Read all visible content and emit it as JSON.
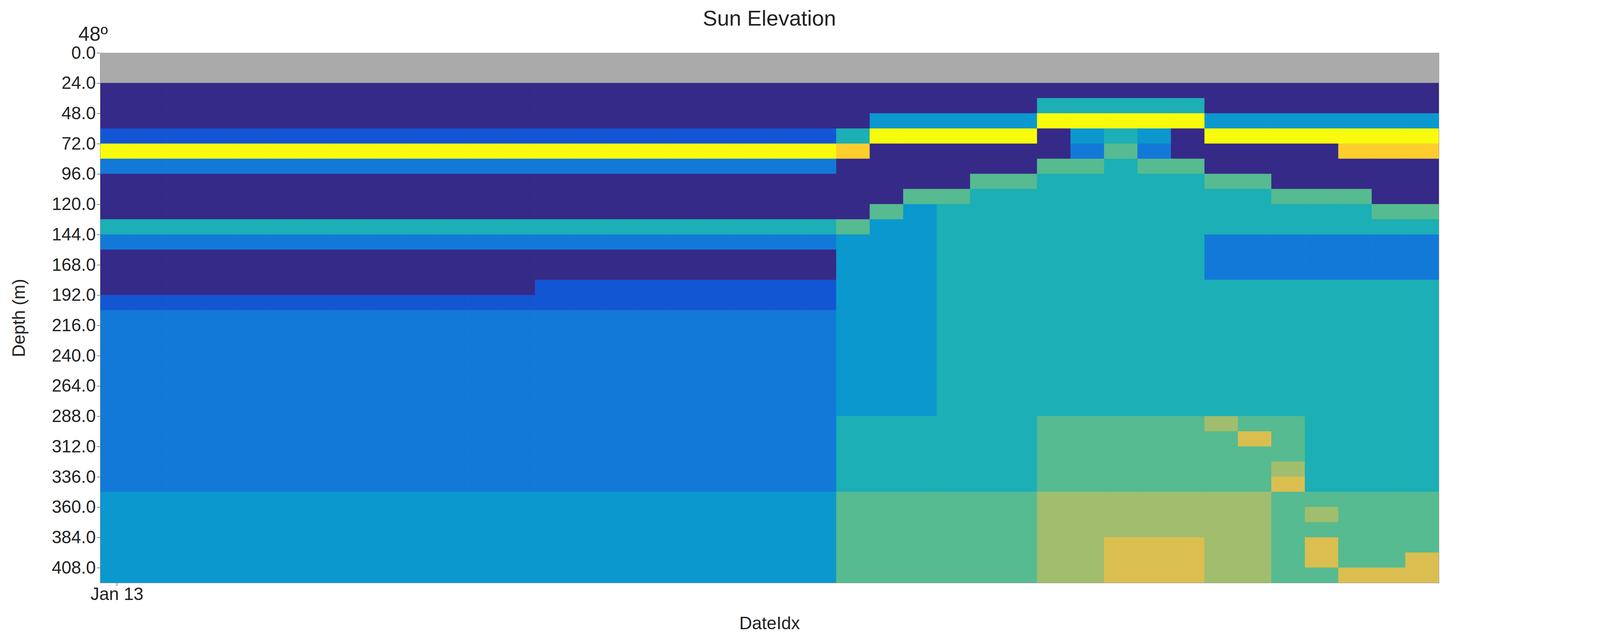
{
  "chart_data": {
    "type": "heatmap",
    "title": "Sun Elevation",
    "annotations": [
      "48º"
    ],
    "x_label": "DateIdx",
    "y_label": "Depth (m)",
    "categories": [
      "Jan 13",
      null,
      null,
      null,
      null,
      null,
      null,
      null,
      null,
      null,
      null,
      null,
      null,
      null,
      null,
      null,
      null,
      null,
      null,
      null,
      null,
      null,
      null,
      null,
      null,
      null,
      null,
      null,
      null,
      null,
      null,
      null,
      null,
      null,
      null,
      null,
      null,
      null,
      null,
      null
    ],
    "ylim": [
      0,
      420
    ],
    "yticks": [
      {
        "value": 0,
        "label": "0.0"
      },
      {
        "value": 24,
        "label": "24.0"
      },
      {
        "value": 48,
        "label": "48.0"
      },
      {
        "value": 72,
        "label": "72.0"
      },
      {
        "value": 96,
        "label": "96.0"
      },
      {
        "value": 120,
        "label": "120.0"
      },
      {
        "value": 144,
        "label": "144.0"
      },
      {
        "value": 168,
        "label": "168.0"
      },
      {
        "value": 192,
        "label": "192.0"
      },
      {
        "value": 216,
        "label": "216.0"
      },
      {
        "value": 240,
        "label": "240.0"
      },
      {
        "value": 264,
        "label": "264.0"
      },
      {
        "value": 288,
        "label": "288.0"
      },
      {
        "value": 312,
        "label": "312.0"
      },
      {
        "value": 336,
        "label": "336.0"
      },
      {
        "value": 360,
        "label": "360.0"
      },
      {
        "value": 384,
        "label": "384.0"
      },
      {
        "value": 408,
        "label": "408.0"
      }
    ],
    "depth_edges": [
      24,
      36,
      48,
      60,
      72,
      84,
      96,
      108,
      120,
      132,
      144,
      156,
      168,
      180,
      192,
      204,
      216,
      228,
      240,
      252,
      264,
      276,
      288,
      300,
      312,
      324,
      336,
      348,
      360,
      372,
      384,
      396,
      408,
      420
    ],
    "values": [
      [
        1,
        1,
        1,
        1,
        1,
        1,
        1,
        1,
        1,
        1,
        1,
        1,
        1,
        1,
        1,
        1,
        1,
        1,
        1,
        1,
        1,
        1,
        1,
        1,
        1,
        1,
        1,
        1,
        1,
        1,
        1,
        1,
        1,
        1,
        1,
        1,
        1,
        1,
        1,
        1
      ],
      [
        1,
        1,
        1,
        1,
        1,
        1,
        1,
        1,
        1,
        1,
        1,
        1,
        1,
        1,
        1,
        1,
        1,
        1,
        1,
        1,
        1,
        1,
        1,
        1,
        1,
        1,
        1,
        1,
        5,
        5,
        5,
        5,
        5,
        1,
        1,
        1,
        1,
        1,
        1,
        1
      ],
      [
        1,
        1,
        1,
        1,
        1,
        1,
        1,
        1,
        1,
        1,
        1,
        1,
        1,
        1,
        1,
        1,
        1,
        1,
        1,
        1,
        1,
        1,
        1,
        4,
        4,
        4,
        4,
        4,
        10,
        10,
        10,
        10,
        10,
        4,
        4,
        4,
        4,
        4,
        4,
        4
      ],
      [
        2,
        2,
        2,
        2,
        2,
        2,
        2,
        2,
        2,
        2,
        2,
        2,
        2,
        2,
        2,
        2,
        2,
        2,
        2,
        2,
        2,
        2,
        5,
        10,
        10,
        10,
        10,
        10,
        1,
        4,
        5,
        4,
        1,
        10,
        10,
        10,
        10,
        10,
        10,
        10
      ],
      [
        10,
        10,
        10,
        10,
        10,
        10,
        10,
        10,
        10,
        10,
        10,
        10,
        10,
        10,
        10,
        10,
        10,
        10,
        10,
        10,
        10,
        10,
        9,
        1,
        1,
        1,
        1,
        1,
        1,
        3,
        6,
        3,
        1,
        1,
        1,
        1,
        1,
        9,
        9,
        9
      ],
      [
        3,
        3,
        3,
        3,
        3,
        3,
        3,
        3,
        3,
        3,
        3,
        3,
        3,
        3,
        3,
        3,
        3,
        3,
        3,
        3,
        3,
        3,
        1,
        1,
        1,
        1,
        1,
        1,
        6,
        6,
        5,
        6,
        6,
        1,
        1,
        1,
        1,
        1,
        1,
        1
      ],
      [
        1,
        1,
        1,
        1,
        1,
        1,
        1,
        1,
        1,
        1,
        1,
        1,
        1,
        1,
        1,
        1,
        1,
        1,
        1,
        1,
        1,
        1,
        1,
        1,
        1,
        1,
        6,
        6,
        5,
        5,
        5,
        5,
        5,
        6,
        6,
        1,
        1,
        1,
        1,
        1
      ],
      [
        1,
        1,
        1,
        1,
        1,
        1,
        1,
        1,
        1,
        1,
        1,
        1,
        1,
        1,
        1,
        1,
        1,
        1,
        1,
        1,
        1,
        1,
        1,
        1,
        6,
        6,
        5,
        5,
        5,
        5,
        5,
        5,
        5,
        5,
        5,
        6,
        6,
        6,
        1,
        1
      ],
      [
        1,
        1,
        1,
        1,
        1,
        1,
        1,
        1,
        1,
        1,
        1,
        1,
        1,
        1,
        1,
        1,
        1,
        1,
        1,
        1,
        1,
        1,
        1,
        6,
        4,
        5,
        5,
        5,
        5,
        5,
        5,
        5,
        5,
        5,
        5,
        5,
        5,
        5,
        6,
        6
      ],
      [
        5,
        5,
        5,
        5,
        5,
        5,
        5,
        5,
        5,
        5,
        5,
        5,
        5,
        5,
        5,
        5,
        5,
        5,
        5,
        5,
        5,
        5,
        6,
        4,
        4,
        5,
        5,
        5,
        5,
        5,
        5,
        5,
        5,
        5,
        5,
        5,
        5,
        5,
        5,
        5
      ],
      [
        3,
        3,
        3,
        3,
        3,
        3,
        3,
        3,
        3,
        3,
        3,
        3,
        3,
        3,
        3,
        3,
        3,
        3,
        3,
        3,
        3,
        3,
        4,
        4,
        4,
        5,
        5,
        5,
        5,
        5,
        5,
        5,
        5,
        3,
        3,
        3,
        3,
        3,
        3,
        3
      ],
      [
        1,
        1,
        1,
        1,
        1,
        1,
        1,
        1,
        1,
        1,
        1,
        1,
        1,
        1,
        1,
        1,
        1,
        1,
        1,
        1,
        1,
        1,
        4,
        4,
        4,
        5,
        5,
        5,
        5,
        5,
        5,
        5,
        5,
        3,
        3,
        3,
        3,
        3,
        3,
        3
      ],
      [
        1,
        1,
        1,
        1,
        1,
        1,
        1,
        1,
        1,
        1,
        1,
        1,
        1,
        1,
        1,
        1,
        1,
        1,
        1,
        1,
        1,
        1,
        4,
        4,
        4,
        5,
        5,
        5,
        5,
        5,
        5,
        5,
        5,
        3,
        3,
        3,
        3,
        3,
        3,
        3
      ],
      [
        1,
        1,
        1,
        1,
        1,
        1,
        1,
        1,
        1,
        1,
        1,
        1,
        1,
        2,
        2,
        2,
        2,
        2,
        2,
        2,
        2,
        2,
        4,
        4,
        4,
        5,
        5,
        5,
        5,
        5,
        5,
        5,
        5,
        5,
        5,
        5,
        5,
        5,
        5,
        5
      ],
      [
        2,
        2,
        2,
        2,
        2,
        2,
        2,
        2,
        2,
        2,
        2,
        2,
        2,
        2,
        2,
        2,
        2,
        2,
        2,
        2,
        2,
        2,
        4,
        4,
        4,
        5,
        5,
        5,
        5,
        5,
        5,
        5,
        5,
        5,
        5,
        5,
        5,
        5,
        5,
        5
      ],
      [
        3,
        3,
        3,
        3,
        3,
        3,
        3,
        3,
        3,
        3,
        3,
        3,
        3,
        3,
        3,
        3,
        3,
        3,
        3,
        3,
        3,
        3,
        4,
        4,
        4,
        5,
        5,
        5,
        5,
        5,
        5,
        5,
        5,
        5,
        5,
        5,
        5,
        5,
        5,
        5
      ],
      [
        3,
        3,
        3,
        3,
        3,
        3,
        3,
        3,
        3,
        3,
        3,
        3,
        3,
        3,
        3,
        3,
        3,
        3,
        3,
        3,
        3,
        3,
        4,
        4,
        4,
        5,
        5,
        5,
        5,
        5,
        5,
        5,
        5,
        5,
        5,
        5,
        5,
        5,
        5,
        5
      ],
      [
        3,
        3,
        3,
        3,
        3,
        3,
        3,
        3,
        3,
        3,
        3,
        3,
        3,
        3,
        3,
        3,
        3,
        3,
        3,
        3,
        3,
        3,
        4,
        4,
        4,
        5,
        5,
        5,
        5,
        5,
        5,
        5,
        5,
        5,
        5,
        5,
        5,
        5,
        5,
        5
      ],
      [
        3,
        3,
        3,
        3,
        3,
        3,
        3,
        3,
        3,
        3,
        3,
        3,
        3,
        3,
        3,
        3,
        3,
        3,
        3,
        3,
        3,
        3,
        4,
        4,
        4,
        5,
        5,
        5,
        5,
        5,
        5,
        5,
        5,
        5,
        5,
        5,
        5,
        5,
        5,
        5
      ],
      [
        3,
        3,
        3,
        3,
        3,
        3,
        3,
        3,
        3,
        3,
        3,
        3,
        3,
        3,
        3,
        3,
        3,
        3,
        3,
        3,
        3,
        3,
        4,
        4,
        4,
        5,
        5,
        5,
        5,
        5,
        5,
        5,
        5,
        5,
        5,
        5,
        5,
        5,
        5,
        5
      ],
      [
        3,
        3,
        3,
        3,
        3,
        3,
        3,
        3,
        3,
        3,
        3,
        3,
        3,
        3,
        3,
        3,
        3,
        3,
        3,
        3,
        3,
        3,
        4,
        4,
        4,
        5,
        5,
        5,
        5,
        5,
        5,
        5,
        5,
        5,
        5,
        5,
        5,
        5,
        5,
        5
      ],
      [
        3,
        3,
        3,
        3,
        3,
        3,
        3,
        3,
        3,
        3,
        3,
        3,
        3,
        3,
        3,
        3,
        3,
        3,
        3,
        3,
        3,
        3,
        4,
        4,
        4,
        5,
        5,
        5,
        5,
        5,
        5,
        5,
        5,
        5,
        5,
        5,
        5,
        5,
        5,
        5
      ],
      [
        3,
        3,
        3,
        3,
        3,
        3,
        3,
        3,
        3,
        3,
        3,
        3,
        3,
        3,
        3,
        3,
        3,
        3,
        3,
        3,
        3,
        3,
        5,
        5,
        5,
        5,
        5,
        5,
        6,
        6,
        6,
        6,
        6,
        7,
        6,
        6,
        5,
        5,
        5,
        5
      ],
      [
        3,
        3,
        3,
        3,
        3,
        3,
        3,
        3,
        3,
        3,
        3,
        3,
        3,
        3,
        3,
        3,
        3,
        3,
        3,
        3,
        3,
        3,
        5,
        5,
        5,
        5,
        5,
        5,
        6,
        6,
        6,
        6,
        6,
        6,
        8,
        6,
        5,
        5,
        5,
        5
      ],
      [
        3,
        3,
        3,
        3,
        3,
        3,
        3,
        3,
        3,
        3,
        3,
        3,
        3,
        3,
        3,
        3,
        3,
        3,
        3,
        3,
        3,
        3,
        5,
        5,
        5,
        5,
        5,
        5,
        6,
        6,
        6,
        6,
        6,
        6,
        6,
        6,
        5,
        5,
        5,
        5
      ],
      [
        3,
        3,
        3,
        3,
        3,
        3,
        3,
        3,
        3,
        3,
        3,
        3,
        3,
        3,
        3,
        3,
        3,
        3,
        3,
        3,
        3,
        3,
        5,
        5,
        5,
        5,
        5,
        5,
        6,
        6,
        6,
        6,
        6,
        6,
        6,
        7,
        5,
        5,
        5,
        5
      ],
      [
        3,
        3,
        3,
        3,
        3,
        3,
        3,
        3,
        3,
        3,
        3,
        3,
        3,
        3,
        3,
        3,
        3,
        3,
        3,
        3,
        3,
        3,
        5,
        5,
        5,
        5,
        5,
        5,
        6,
        6,
        6,
        6,
        6,
        6,
        6,
        8,
        5,
        5,
        5,
        5
      ],
      [
        4,
        4,
        4,
        4,
        4,
        4,
        4,
        4,
        4,
        4,
        4,
        4,
        4,
        4,
        4,
        4,
        4,
        4,
        4,
        4,
        4,
        4,
        6,
        6,
        6,
        6,
        6,
        6,
        7,
        7,
        7,
        7,
        7,
        7,
        7,
        6,
        6,
        6,
        6,
        6
      ],
      [
        4,
        4,
        4,
        4,
        4,
        4,
        4,
        4,
        4,
        4,
        4,
        4,
        4,
        4,
        4,
        4,
        4,
        4,
        4,
        4,
        4,
        4,
        6,
        6,
        6,
        6,
        6,
        6,
        7,
        7,
        7,
        7,
        7,
        7,
        7,
        6,
        7,
        6,
        6,
        6
      ],
      [
        4,
        4,
        4,
        4,
        4,
        4,
        4,
        4,
        4,
        4,
        4,
        4,
        4,
        4,
        4,
        4,
        4,
        4,
        4,
        4,
        4,
        4,
        6,
        6,
        6,
        6,
        6,
        6,
        7,
        7,
        7,
        7,
        7,
        7,
        7,
        6,
        6,
        6,
        6,
        6
      ],
      [
        4,
        4,
        4,
        4,
        4,
        4,
        4,
        4,
        4,
        4,
        4,
        4,
        4,
        4,
        4,
        4,
        4,
        4,
        4,
        4,
        4,
        4,
        6,
        6,
        6,
        6,
        6,
        6,
        7,
        7,
        8,
        8,
        8,
        7,
        7,
        6,
        8,
        6,
        6,
        6
      ],
      [
        4,
        4,
        4,
        4,
        4,
        4,
        4,
        4,
        4,
        4,
        4,
        4,
        4,
        4,
        4,
        4,
        4,
        4,
        4,
        4,
        4,
        4,
        6,
        6,
        6,
        6,
        6,
        6,
        7,
        7,
        8,
        8,
        8,
        7,
        7,
        6,
        8,
        6,
        6,
        8
      ],
      [
        4,
        4,
        4,
        4,
        4,
        4,
        4,
        4,
        4,
        4,
        4,
        4,
        4,
        4,
        4,
        4,
        4,
        4,
        4,
        4,
        4,
        4,
        6,
        6,
        6,
        6,
        6,
        6,
        7,
        7,
        8,
        8,
        8,
        7,
        7,
        6,
        6,
        8,
        8,
        8
      ]
    ]
  }
}
